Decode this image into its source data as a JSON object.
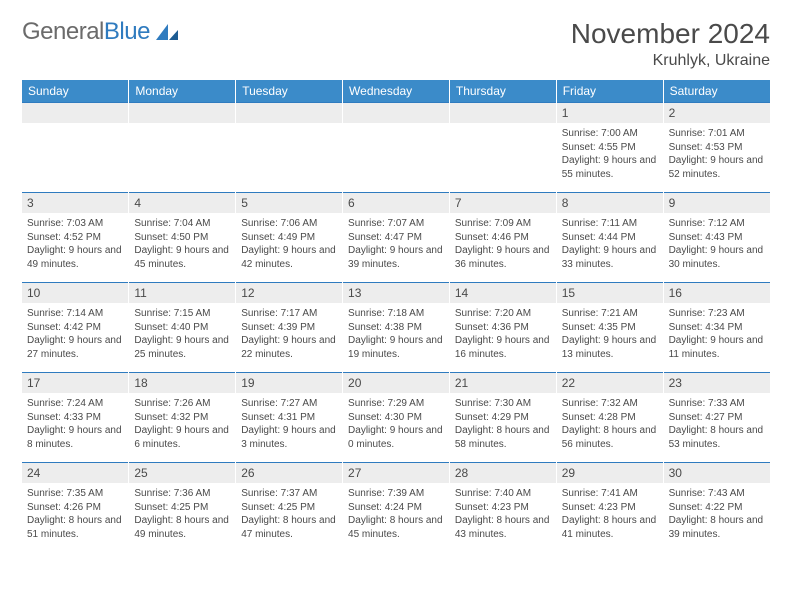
{
  "logo": {
    "part1": "General",
    "part2": "Blue"
  },
  "title": "November 2024",
  "location": "Kruhlyk, Ukraine",
  "colors": {
    "header_bg": "#3b8bc9",
    "accent_line": "#2f7bbf",
    "daynum_bg": "#ededed",
    "text": "#4a4a4a",
    "logo_gray": "#6b6b6b"
  },
  "daynames": [
    "Sunday",
    "Monday",
    "Tuesday",
    "Wednesday",
    "Thursday",
    "Friday",
    "Saturday"
  ],
  "weeks": [
    [
      {
        "n": "",
        "sr": "",
        "ss": "",
        "dl": ""
      },
      {
        "n": "",
        "sr": "",
        "ss": "",
        "dl": ""
      },
      {
        "n": "",
        "sr": "",
        "ss": "",
        "dl": ""
      },
      {
        "n": "",
        "sr": "",
        "ss": "",
        "dl": ""
      },
      {
        "n": "",
        "sr": "",
        "ss": "",
        "dl": ""
      },
      {
        "n": "1",
        "sr": "Sunrise: 7:00 AM",
        "ss": "Sunset: 4:55 PM",
        "dl": "Daylight: 9 hours and 55 minutes."
      },
      {
        "n": "2",
        "sr": "Sunrise: 7:01 AM",
        "ss": "Sunset: 4:53 PM",
        "dl": "Daylight: 9 hours and 52 minutes."
      }
    ],
    [
      {
        "n": "3",
        "sr": "Sunrise: 7:03 AM",
        "ss": "Sunset: 4:52 PM",
        "dl": "Daylight: 9 hours and 49 minutes."
      },
      {
        "n": "4",
        "sr": "Sunrise: 7:04 AM",
        "ss": "Sunset: 4:50 PM",
        "dl": "Daylight: 9 hours and 45 minutes."
      },
      {
        "n": "5",
        "sr": "Sunrise: 7:06 AM",
        "ss": "Sunset: 4:49 PM",
        "dl": "Daylight: 9 hours and 42 minutes."
      },
      {
        "n": "6",
        "sr": "Sunrise: 7:07 AM",
        "ss": "Sunset: 4:47 PM",
        "dl": "Daylight: 9 hours and 39 minutes."
      },
      {
        "n": "7",
        "sr": "Sunrise: 7:09 AM",
        "ss": "Sunset: 4:46 PM",
        "dl": "Daylight: 9 hours and 36 minutes."
      },
      {
        "n": "8",
        "sr": "Sunrise: 7:11 AM",
        "ss": "Sunset: 4:44 PM",
        "dl": "Daylight: 9 hours and 33 minutes."
      },
      {
        "n": "9",
        "sr": "Sunrise: 7:12 AM",
        "ss": "Sunset: 4:43 PM",
        "dl": "Daylight: 9 hours and 30 minutes."
      }
    ],
    [
      {
        "n": "10",
        "sr": "Sunrise: 7:14 AM",
        "ss": "Sunset: 4:42 PM",
        "dl": "Daylight: 9 hours and 27 minutes."
      },
      {
        "n": "11",
        "sr": "Sunrise: 7:15 AM",
        "ss": "Sunset: 4:40 PM",
        "dl": "Daylight: 9 hours and 25 minutes."
      },
      {
        "n": "12",
        "sr": "Sunrise: 7:17 AM",
        "ss": "Sunset: 4:39 PM",
        "dl": "Daylight: 9 hours and 22 minutes."
      },
      {
        "n": "13",
        "sr": "Sunrise: 7:18 AM",
        "ss": "Sunset: 4:38 PM",
        "dl": "Daylight: 9 hours and 19 minutes."
      },
      {
        "n": "14",
        "sr": "Sunrise: 7:20 AM",
        "ss": "Sunset: 4:36 PM",
        "dl": "Daylight: 9 hours and 16 minutes."
      },
      {
        "n": "15",
        "sr": "Sunrise: 7:21 AM",
        "ss": "Sunset: 4:35 PM",
        "dl": "Daylight: 9 hours and 13 minutes."
      },
      {
        "n": "16",
        "sr": "Sunrise: 7:23 AM",
        "ss": "Sunset: 4:34 PM",
        "dl": "Daylight: 9 hours and 11 minutes."
      }
    ],
    [
      {
        "n": "17",
        "sr": "Sunrise: 7:24 AM",
        "ss": "Sunset: 4:33 PM",
        "dl": "Daylight: 9 hours and 8 minutes."
      },
      {
        "n": "18",
        "sr": "Sunrise: 7:26 AM",
        "ss": "Sunset: 4:32 PM",
        "dl": "Daylight: 9 hours and 6 minutes."
      },
      {
        "n": "19",
        "sr": "Sunrise: 7:27 AM",
        "ss": "Sunset: 4:31 PM",
        "dl": "Daylight: 9 hours and 3 minutes."
      },
      {
        "n": "20",
        "sr": "Sunrise: 7:29 AM",
        "ss": "Sunset: 4:30 PM",
        "dl": "Daylight: 9 hours and 0 minutes."
      },
      {
        "n": "21",
        "sr": "Sunrise: 7:30 AM",
        "ss": "Sunset: 4:29 PM",
        "dl": "Daylight: 8 hours and 58 minutes."
      },
      {
        "n": "22",
        "sr": "Sunrise: 7:32 AM",
        "ss": "Sunset: 4:28 PM",
        "dl": "Daylight: 8 hours and 56 minutes."
      },
      {
        "n": "23",
        "sr": "Sunrise: 7:33 AM",
        "ss": "Sunset: 4:27 PM",
        "dl": "Daylight: 8 hours and 53 minutes."
      }
    ],
    [
      {
        "n": "24",
        "sr": "Sunrise: 7:35 AM",
        "ss": "Sunset: 4:26 PM",
        "dl": "Daylight: 8 hours and 51 minutes."
      },
      {
        "n": "25",
        "sr": "Sunrise: 7:36 AM",
        "ss": "Sunset: 4:25 PM",
        "dl": "Daylight: 8 hours and 49 minutes."
      },
      {
        "n": "26",
        "sr": "Sunrise: 7:37 AM",
        "ss": "Sunset: 4:25 PM",
        "dl": "Daylight: 8 hours and 47 minutes."
      },
      {
        "n": "27",
        "sr": "Sunrise: 7:39 AM",
        "ss": "Sunset: 4:24 PM",
        "dl": "Daylight: 8 hours and 45 minutes."
      },
      {
        "n": "28",
        "sr": "Sunrise: 7:40 AM",
        "ss": "Sunset: 4:23 PM",
        "dl": "Daylight: 8 hours and 43 minutes."
      },
      {
        "n": "29",
        "sr": "Sunrise: 7:41 AM",
        "ss": "Sunset: 4:23 PM",
        "dl": "Daylight: 8 hours and 41 minutes."
      },
      {
        "n": "30",
        "sr": "Sunrise: 7:43 AM",
        "ss": "Sunset: 4:22 PM",
        "dl": "Daylight: 8 hours and 39 minutes."
      }
    ]
  ]
}
